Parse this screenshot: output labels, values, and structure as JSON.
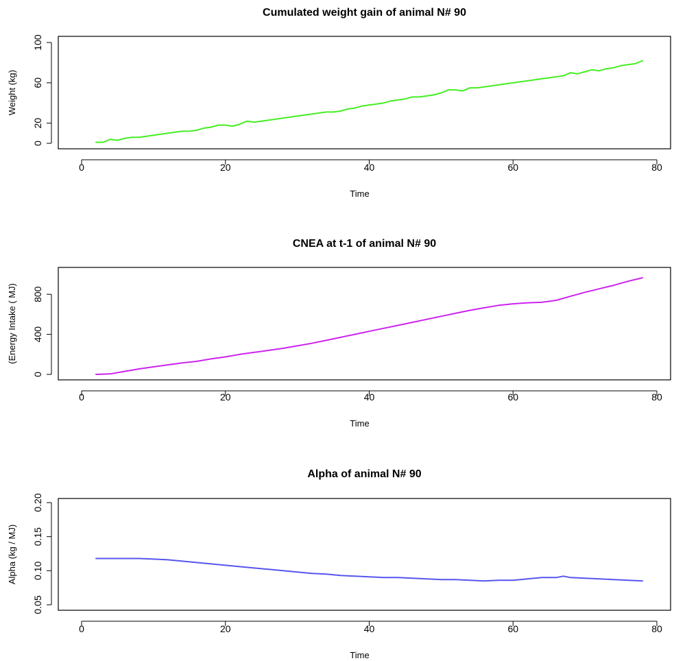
{
  "chart_data": [
    {
      "type": "line",
      "title": "Cumulated weight gain of animal N# 90",
      "xlabel": "Time",
      "ylabel": "Weight (kg)",
      "xlim": [
        0,
        80
      ],
      "ylim": [
        0,
        100
      ],
      "xticks": [
        0,
        20,
        40,
        60,
        80
      ],
      "yticks": [
        0,
        20,
        60,
        100
      ],
      "grid": false,
      "series": [
        {
          "color": "#44ee22",
          "x": [
            2,
            3,
            4,
            5,
            6,
            7,
            8,
            9,
            10,
            11,
            12,
            13,
            14,
            15,
            16,
            17,
            18,
            19,
            20,
            21,
            22,
            23,
            24,
            25,
            26,
            27,
            28,
            29,
            30,
            31,
            32,
            33,
            34,
            35,
            36,
            37,
            38,
            39,
            40,
            41,
            42,
            43,
            44,
            45,
            46,
            47,
            48,
            49,
            50,
            51,
            52,
            53,
            54,
            55,
            56,
            57,
            58,
            59,
            60,
            61,
            62,
            63,
            64,
            65,
            66,
            67,
            68,
            69,
            70,
            71,
            72,
            73,
            74,
            75,
            76,
            77,
            78
          ],
          "y": [
            1,
            1,
            4,
            3,
            5,
            6,
            6,
            7,
            8,
            9,
            10,
            11,
            12,
            12,
            13,
            15,
            16,
            18,
            18,
            17,
            19,
            22,
            21,
            22,
            23,
            24,
            25,
            26,
            27,
            28,
            29,
            30,
            31,
            31,
            32,
            34,
            35,
            37,
            38,
            39,
            40,
            42,
            43,
            44,
            46,
            46,
            47,
            48,
            50,
            53,
            53,
            52,
            55,
            55,
            56,
            57,
            58,
            59,
            60,
            61,
            62,
            63,
            64,
            65,
            66,
            67,
            70,
            69,
            71,
            73,
            72,
            74,
            75,
            77,
            78,
            79,
            82
          ]
        }
      ]
    },
    {
      "type": "line",
      "title": "CNEA at  t-1 of animal N# 90",
      "xlabel": "Time",
      "ylabel": "(Energy Intake ( MJ)",
      "xlim": [
        0,
        80
      ],
      "ylim": [
        0,
        1000
      ],
      "xticks": [
        0,
        20,
        40,
        60,
        80
      ],
      "yticks": [
        0,
        400,
        800
      ],
      "grid": false,
      "series": [
        {
          "color": "#cc22ee",
          "x": [
            2,
            4,
            6,
            8,
            10,
            12,
            14,
            16,
            18,
            20,
            22,
            24,
            26,
            28,
            30,
            32,
            34,
            36,
            38,
            40,
            42,
            44,
            46,
            48,
            50,
            52,
            54,
            56,
            58,
            60,
            62,
            64,
            66,
            68,
            70,
            72,
            74,
            76,
            78
          ],
          "y": [
            0,
            5,
            30,
            55,
            75,
            95,
            115,
            130,
            155,
            175,
            200,
            220,
            240,
            260,
            285,
            310,
            340,
            370,
            400,
            430,
            460,
            490,
            520,
            550,
            580,
            610,
            640,
            665,
            690,
            705,
            715,
            720,
            740,
            780,
            820,
            855,
            890,
            930,
            965
          ]
        }
      ]
    },
    {
      "type": "line",
      "title": "Alpha of animal N# 90",
      "xlabel": "Time",
      "ylabel": "Alpha (kg / MJ)",
      "xlim": [
        0,
        80
      ],
      "ylim": [
        0.05,
        0.2
      ],
      "xticks": [
        0,
        20,
        40,
        60,
        80
      ],
      "yticks": [
        0.05,
        0.1,
        0.15,
        0.2
      ],
      "yticklabels": [
        "0.05",
        "0.10",
        "0.15",
        "0.20"
      ],
      "grid": false,
      "series": [
        {
          "color": "#5555ee",
          "x": [
            2,
            5,
            8,
            10,
            12,
            14,
            16,
            18,
            20,
            22,
            24,
            26,
            28,
            30,
            32,
            34,
            36,
            38,
            40,
            42,
            44,
            46,
            48,
            50,
            52,
            54,
            56,
            58,
            60,
            62,
            64,
            66,
            67,
            68,
            70,
            72,
            74,
            76,
            78
          ],
          "y": [
            0.118,
            0.118,
            0.118,
            0.117,
            0.116,
            0.114,
            0.112,
            0.11,
            0.108,
            0.106,
            0.104,
            0.102,
            0.1,
            0.098,
            0.096,
            0.095,
            0.093,
            0.092,
            0.091,
            0.09,
            0.09,
            0.089,
            0.088,
            0.087,
            0.087,
            0.086,
            0.085,
            0.086,
            0.086,
            0.088,
            0.09,
            0.09,
            0.092,
            0.09,
            0.089,
            0.088,
            0.087,
            0.086,
            0.085
          ]
        }
      ]
    }
  ]
}
